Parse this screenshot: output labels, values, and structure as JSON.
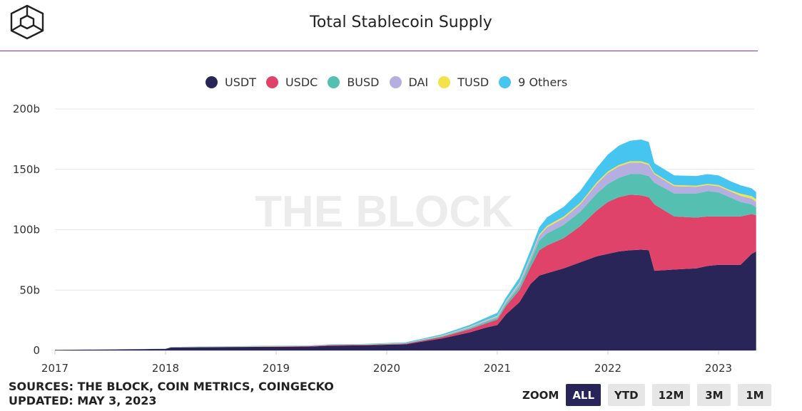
{
  "header": {
    "title": "Total Stablecoin Supply",
    "logo_icon": "the-block-cube-logo-icon"
  },
  "watermark": "THE BLOCK",
  "legend": [
    {
      "label": "USDT",
      "color": "#2a2558"
    },
    {
      "label": "USDC",
      "color": "#e0436a"
    },
    {
      "label": "BUSD",
      "color": "#55bfb2"
    },
    {
      "label": "DAI",
      "color": "#b5aee0"
    },
    {
      "label": "TUSD",
      "color": "#f3e24a"
    },
    {
      "label": "9 Others",
      "color": "#45c5f0"
    }
  ],
  "sources": {
    "line1": "SOURCES: THE BLOCK, COIN METRICS, COINGECKO",
    "line2": "UPDATED: MAY 3, 2023"
  },
  "zoom": {
    "label": "ZOOM",
    "buttons": [
      "ALL",
      "YTD",
      "12M",
      "3M",
      "1M"
    ],
    "active": "ALL"
  },
  "chart_data": {
    "type": "area",
    "stacked": true,
    "title": "Total Stablecoin Supply",
    "xlabel": "",
    "ylabel": "",
    "x_ticks": [
      "2017",
      "2018",
      "2019",
      "2020",
      "2021",
      "2022",
      "2023"
    ],
    "y_ticks": [
      "0",
      "50b",
      "100b",
      "150b",
      "200b"
    ],
    "ylim": [
      0,
      200
    ],
    "xlim": [
      2017.0,
      2023.34
    ],
    "grid": true,
    "legend_position": "top",
    "x": [
      2017.0,
      2017.5,
      2018.0,
      2018.05,
      2018.5,
      2019.0,
      2019.3,
      2019.5,
      2019.8,
      2020.0,
      2020.17,
      2020.3,
      2020.5,
      2020.6,
      2020.75,
      2020.9,
      2021.0,
      2021.08,
      2021.2,
      2021.3,
      2021.38,
      2021.45,
      2021.6,
      2021.75,
      2021.9,
      2022.0,
      2022.1,
      2022.2,
      2022.3,
      2022.37,
      2022.42,
      2022.6,
      2022.8,
      2022.9,
      2023.0,
      2023.1,
      2023.2,
      2023.3,
      2023.34
    ],
    "series": [
      {
        "name": "USDT",
        "values": [
          0.5,
          0.8,
          1.3,
          2.5,
          2.8,
          3.0,
          3.2,
          4.0,
          4.2,
          4.7,
          5.0,
          7.0,
          10.0,
          12.0,
          15.0,
          19.0,
          21.0,
          30.0,
          40.0,
          55.0,
          62.0,
          64.0,
          68.0,
          73.0,
          78.0,
          80.0,
          82.0,
          83.0,
          83.5,
          83.0,
          66.0,
          67.0,
          68.0,
          70.0,
          71.0,
          71.0,
          71.0,
          80.0,
          82.0
        ]
      },
      {
        "name": "USDC",
        "values": [
          0.0,
          0.0,
          0.0,
          0.1,
          0.1,
          0.3,
          0.4,
          0.5,
          0.5,
          0.5,
          0.6,
          0.8,
          1.2,
          1.7,
          2.5,
          3.5,
          4.5,
          7.0,
          10.0,
          14.0,
          21.0,
          23.0,
          25.0,
          30.0,
          38.0,
          43.0,
          45.0,
          46.0,
          45.0,
          44.0,
          55.0,
          44.0,
          42.0,
          41.0,
          40.0,
          40.0,
          40.0,
          33.0,
          30.0
        ]
      },
      {
        "name": "BUSD",
        "values": [
          0.0,
          0.0,
          0.0,
          0.0,
          0.0,
          0.0,
          0.0,
          0.1,
          0.15,
          0.2,
          0.3,
          0.4,
          0.6,
          0.7,
          0.9,
          1.2,
          1.5,
          2.0,
          3.0,
          5.0,
          8.0,
          10.0,
          11.0,
          12.0,
          14.0,
          15.0,
          16.0,
          17.0,
          17.5,
          17.5,
          18.0,
          19.0,
          20.0,
          21.0,
          20.0,
          16.0,
          12.0,
          8.0,
          6.5
        ]
      },
      {
        "name": "DAI",
        "values": [
          0.0,
          0.0,
          0.0,
          0.0,
          0.0,
          0.05,
          0.05,
          0.05,
          0.05,
          0.1,
          0.1,
          0.15,
          0.3,
          0.5,
          0.9,
          1.1,
          1.2,
          1.5,
          2.5,
          3.0,
          4.0,
          5.0,
          5.5,
          6.0,
          8.0,
          9.0,
          9.5,
          9.5,
          9.5,
          9.0,
          7.0,
          6.0,
          5.5,
          5.0,
          5.0,
          5.0,
          5.0,
          4.8,
          4.7
        ]
      },
      {
        "name": "TUSD",
        "values": [
          0.0,
          0.0,
          0.1,
          0.1,
          0.2,
          0.3,
          0.2,
          0.2,
          0.15,
          0.15,
          0.15,
          0.2,
          0.3,
          0.35,
          0.4,
          0.4,
          0.5,
          0.6,
          0.8,
          1.0,
          1.2,
          1.3,
          1.4,
          1.3,
          1.3,
          1.3,
          1.2,
          1.2,
          1.2,
          1.2,
          1.0,
          1.0,
          1.0,
          1.0,
          1.0,
          1.0,
          1.8,
          2.0,
          2.0
        ]
      },
      {
        "name": "9 Others",
        "values": [
          0.0,
          0.0,
          0.1,
          0.2,
          0.3,
          0.3,
          0.3,
          0.35,
          0.4,
          0.5,
          0.6,
          0.8,
          1.0,
          1.2,
          1.5,
          2.0,
          2.5,
          3.0,
          4.0,
          5.0,
          6.0,
          7.0,
          8.0,
          10.0,
          12.0,
          14.0,
          16.0,
          17.0,
          18.0,
          18.0,
          8.0,
          8.0,
          8.0,
          8.0,
          8.0,
          7.5,
          7.0,
          6.5,
          6.0
        ]
      }
    ]
  }
}
